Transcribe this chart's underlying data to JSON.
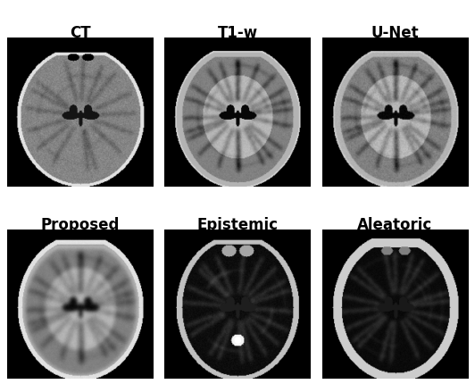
{
  "titles_row1": [
    "CT",
    "T1-w",
    "U-Net"
  ],
  "titles_row2": [
    "Proposed",
    "Epistemic",
    "Aleatoric"
  ],
  "title_fontsize": 12,
  "title_fontweight": "bold",
  "bg_color": "#ffffff",
  "fig_width": 5.32,
  "fig_height": 4.3,
  "nrows": 2,
  "ncols": 3
}
